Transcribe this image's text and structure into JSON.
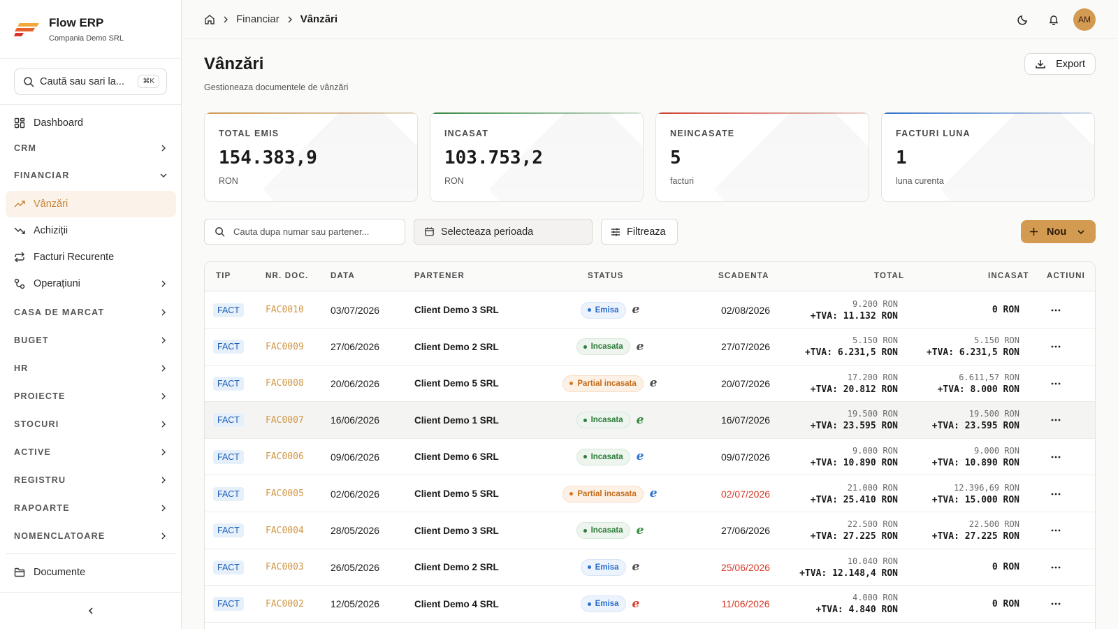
{
  "app": {
    "name": "Flow ERP",
    "company": "Compania Demo SRL"
  },
  "sidebar": {
    "search": {
      "placeholder": "Caută sau sari la...",
      "shortcut": "⌘K"
    },
    "items": [
      {
        "label": "Dashboard",
        "icon": "dashboard-icon"
      },
      {
        "label": "CRM"
      },
      {
        "label": "FINANCIAR"
      },
      {
        "label": "Vânzări",
        "icon": "trending-up-icon",
        "active": true
      },
      {
        "label": "Achiziții",
        "icon": "trending-down-icon"
      },
      {
        "label": "Facturi Recurente",
        "icon": "repeat-icon"
      },
      {
        "label": "Operațiuni",
        "icon": "workflow-icon"
      },
      {
        "label": "CASA DE MARCAT"
      },
      {
        "label": "BUGET"
      },
      {
        "label": "HR"
      },
      {
        "label": "PROIECTE"
      },
      {
        "label": "STOCURI"
      },
      {
        "label": "ACTIVE"
      },
      {
        "label": "REGISTRU"
      },
      {
        "label": "RAPOARTE"
      },
      {
        "label": "NOMENCLATOARE"
      },
      {
        "label": "Documente",
        "icon": "folder-icon"
      }
    ]
  },
  "breadcrumb": {
    "items": [
      "Financiar",
      "Vânzări"
    ]
  },
  "header": {
    "avatar": "AM"
  },
  "page": {
    "title": "Vânzări",
    "subtitle": "Gestioneaza documentele de vânzări",
    "export_label": "Export"
  },
  "kpis": [
    {
      "label": "TOTAL EMIS",
      "value": "154.383,9",
      "unit": "RON",
      "color": "#d39a52"
    },
    {
      "label": "INCASAT",
      "value": "103.753,2",
      "unit": "RON",
      "color": "#2e8b3e"
    },
    {
      "label": "NEINCASATE",
      "value": "5",
      "unit": "facturi",
      "color": "#d53a2a"
    },
    {
      "label": "FACTURI LUNA",
      "value": "1",
      "unit": "luna curenta",
      "color": "#2c6fd0"
    }
  ],
  "toolbar": {
    "search_placeholder": "Cauta dupa numar sau partener...",
    "period_label": "Selecteaza perioada",
    "filter_label": "Filtreaza",
    "new_label": "Nou"
  },
  "table": {
    "columns": [
      "TIP",
      "NR. DOC.",
      "DATA",
      "PARTENER",
      "STATUS",
      "SCADENTA",
      "TOTAL",
      "INCASAT",
      "ACTIUNI"
    ],
    "rows": [
      {
        "tip": "FACT",
        "nr": "FAC0010",
        "data": "03/07/2026",
        "partener": "Client Demo 3 SRL",
        "status": "Emisa",
        "status_kind": "emisa",
        "efact_color": "#4a4a4a",
        "scadenta": "02/08/2026",
        "overdue": false,
        "total": "9.200 RON",
        "total_tva": "+TVA: 11.132 RON",
        "incasat": "",
        "incasat_tva": "0 RON"
      },
      {
        "tip": "FACT",
        "nr": "FAC0009",
        "data": "27/06/2026",
        "partener": "Client Demo 2 SRL",
        "status": "Incasata",
        "status_kind": "incasata",
        "efact_color": "#4a4a4a",
        "scadenta": "27/07/2026",
        "overdue": false,
        "total": "5.150 RON",
        "total_tva": "+TVA: 6.231,5 RON",
        "incasat": "5.150 RON",
        "incasat_tva": "+TVA: 6.231,5 RON"
      },
      {
        "tip": "FACT",
        "nr": "FAC0008",
        "data": "20/06/2026",
        "partener": "Client Demo 5 SRL",
        "status": "Partial incasata",
        "status_kind": "partial",
        "efact_color": "#4a4a4a",
        "scadenta": "20/07/2026",
        "overdue": false,
        "total": "17.200 RON",
        "total_tva": "+TVA: 20.812 RON",
        "incasat": "6.611,57 RON",
        "incasat_tva": "+TVA: 8.000 RON"
      },
      {
        "tip": "FACT",
        "nr": "FAC0007",
        "data": "16/06/2026",
        "partener": "Client Demo 1 SRL",
        "status": "Incasata",
        "status_kind": "incasata",
        "efact_color": "#2e8b3e",
        "scadenta": "16/07/2026",
        "overdue": false,
        "total": "19.500 RON",
        "total_tva": "+TVA: 23.595 RON",
        "incasat": "19.500 RON",
        "incasat_tva": "+TVA: 23.595 RON",
        "highlight": true
      },
      {
        "tip": "FACT",
        "nr": "FAC0006",
        "data": "09/06/2026",
        "partener": "Client Demo 6 SRL",
        "status": "Incasata",
        "status_kind": "incasata",
        "efact_color": "#2c6fd0",
        "scadenta": "09/07/2026",
        "overdue": false,
        "total": "9.000 RON",
        "total_tva": "+TVA: 10.890 RON",
        "incasat": "9.000 RON",
        "incasat_tva": "+TVA: 10.890 RON"
      },
      {
        "tip": "FACT",
        "nr": "FAC0005",
        "data": "02/06/2026",
        "partener": "Client Demo 5 SRL",
        "status": "Partial incasata",
        "status_kind": "partial",
        "efact_color": "#2c6fd0",
        "scadenta": "02/07/2026",
        "overdue": true,
        "total": "21.000 RON",
        "total_tva": "+TVA: 25.410 RON",
        "incasat": "12.396,69 RON",
        "incasat_tva": "+TVA: 15.000 RON"
      },
      {
        "tip": "FACT",
        "nr": "FAC0004",
        "data": "28/05/2026",
        "partener": "Client Demo 3 SRL",
        "status": "Incasata",
        "status_kind": "incasata",
        "efact_color": "#2e8b3e",
        "scadenta": "27/06/2026",
        "overdue": false,
        "total": "22.500 RON",
        "total_tva": "+TVA: 27.225 RON",
        "incasat": "22.500 RON",
        "incasat_tva": "+TVA: 27.225 RON"
      },
      {
        "tip": "FACT",
        "nr": "FAC0003",
        "data": "26/05/2026",
        "partener": "Client Demo 2 SRL",
        "status": "Emisa",
        "status_kind": "emisa",
        "efact_color": "#4a4a4a",
        "scadenta": "25/06/2026",
        "overdue": true,
        "total": "10.040 RON",
        "total_tva": "+TVA: 12.148,4 RON",
        "incasat": "",
        "incasat_tva": "0 RON"
      },
      {
        "tip": "FACT",
        "nr": "FAC0002",
        "data": "12/05/2026",
        "partener": "Client Demo 4 SRL",
        "status": "Emisa",
        "status_kind": "emisa",
        "efact_color": "#d53a2a",
        "scadenta": "11/06/2026",
        "overdue": true,
        "total": "4.000 RON",
        "total_tva": "+TVA: 4.840 RON",
        "incasat": "",
        "incasat_tva": "0 RON"
      }
    ]
  }
}
